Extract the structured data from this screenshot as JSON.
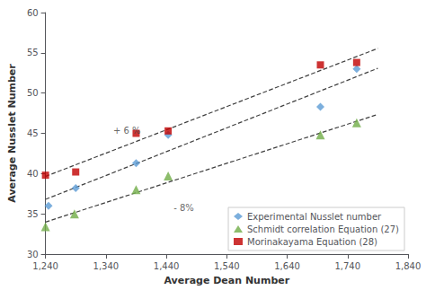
{
  "chart_data": {
    "type": "scatter",
    "xlabel": "Average Dean Number",
    "ylabel": "Average Nusslet Number",
    "xlim": [
      1240,
      1840
    ],
    "ylim": [
      30,
      60
    ],
    "xticks": [
      1240,
      1340,
      1440,
      1540,
      1640,
      1740,
      1840
    ],
    "yticks": [
      30,
      35,
      40,
      45,
      50,
      55,
      60
    ],
    "grid": false,
    "legend": "lower right",
    "series": [
      {
        "type": "line",
        "line_style": "dashed",
        "color": "#404040",
        "x": [
          1240,
          1790
        ],
        "values": [
          39.65,
          55.55
        ]
      },
      {
        "type": "line",
        "line_style": "dashed",
        "color": "#404040",
        "x": [
          1240,
          1790
        ],
        "values": [
          36.8,
          53.08
        ]
      },
      {
        "type": "line",
        "line_style": "dashed",
        "color": "#404040",
        "x": [
          1240,
          1790
        ],
        "values": [
          33.98,
          47.35
        ]
      },
      {
        "name": "Experimental Nusslet number",
        "type": "scatter",
        "marker": "diamond",
        "color": "#5b9bd5",
        "x": [
          1245,
          1290,
          1390,
          1443,
          1695,
          1755
        ],
        "values": [
          36.0,
          38.2,
          41.3,
          44.8,
          48.3,
          53.0
        ]
      },
      {
        "name": "Schmidt correlation Equation (27)",
        "type": "scatter",
        "marker": "triangle",
        "color": "#70ad47",
        "x": [
          1240,
          1288,
          1390,
          1443,
          1695,
          1755
        ],
        "values": [
          33.4,
          35.0,
          38.0,
          39.7,
          44.8,
          46.3
        ]
      },
      {
        "name": "Morinakayama Equation (28)",
        "type": "scatter",
        "marker": "square",
        "color": "#c00000",
        "x": [
          1240,
          1290,
          1390,
          1443,
          1695,
          1755
        ],
        "values": [
          39.8,
          40.2,
          45.0,
          45.3,
          53.5,
          53.8
        ]
      }
    ],
    "annotations": [
      {
        "text": "+ 6 %",
        "x": 1352,
        "y": 44.8
      },
      {
        "text": "- 8%",
        "x": 1452,
        "y": 36.3
      }
    ]
  }
}
